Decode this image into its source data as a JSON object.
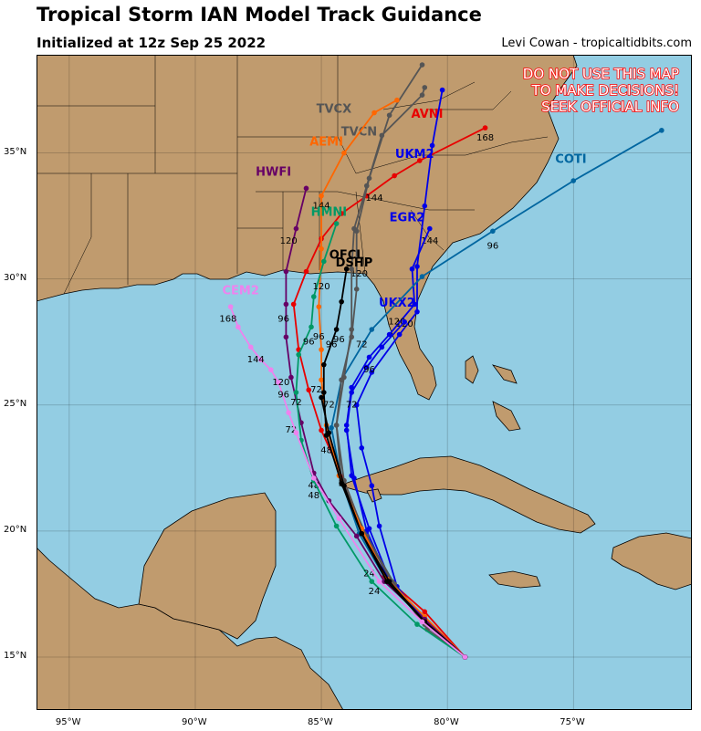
{
  "header": {
    "title": "Tropical Storm IAN Model Track Guidance",
    "subtitle": "Initialized at 12z Sep 25 2022",
    "credit": "Levi Cowan - tropicaltidbits.com"
  },
  "warning": [
    "DO NOT USE THIS MAP",
    "TO MAKE DECISIONS!",
    "SEEK OFFICIAL INFO"
  ],
  "colors": {
    "ocean": "#93cde3",
    "land": "#c09b6e",
    "border": "#000000",
    "warning_text": "#ff0000"
  },
  "axes": {
    "lon_range": [
      -96.3,
      -70.3
    ],
    "lat_range": [
      12.9,
      38.9
    ],
    "lon_ticks": [
      {
        "v": -95,
        "t": "95°W"
      },
      {
        "v": -90,
        "t": "90°W"
      },
      {
        "v": -85,
        "t": "85°W"
      },
      {
        "v": -80,
        "t": "80°W"
      },
      {
        "v": -75,
        "t": "75°W"
      }
    ],
    "lat_ticks": [
      {
        "v": 15,
        "t": "15°N"
      },
      {
        "v": 20,
        "t": "20°N"
      },
      {
        "v": 25,
        "t": "25°N"
      },
      {
        "v": 30,
        "t": "30°N"
      },
      {
        "v": 35,
        "t": "35°N"
      }
    ]
  },
  "tracks": [
    {
      "name": "AVNI",
      "color": "#e80000",
      "label_at": [
        -80.8,
        36.4
      ],
      "points": [
        [
          -79.3,
          15.0
        ],
        [
          -80.9,
          16.8
        ],
        [
          -82.5,
          18.2
        ],
        [
          -83.3,
          19.9
        ],
        [
          -84.1,
          22.0
        ],
        [
          -85.0,
          24.0
        ],
        [
          -85.5,
          25.6
        ],
        [
          -85.9,
          27.2
        ],
        [
          -86.1,
          29.0
        ],
        [
          -85.6,
          30.3
        ],
        [
          -85.0,
          31.6
        ],
        [
          -84.2,
          32.6
        ],
        [
          -83.2,
          33.3
        ],
        [
          -82.1,
          34.1
        ],
        [
          -81.1,
          34.7
        ],
        [
          -78.5,
          36.0
        ]
      ],
      "hours": [
        {
          "t": "168",
          "at": [
            -78.5,
            35.5
          ]
        }
      ]
    },
    {
      "name": "UKM2",
      "color": "#0000e8",
      "label_at": [
        -81.3,
        34.8
      ],
      "points": [
        [
          -79.3,
          15.0
        ],
        [
          -80.8,
          16.3
        ],
        [
          -82.0,
          17.8
        ],
        [
          -82.7,
          20.2
        ],
        [
          -83.0,
          21.8
        ],
        [
          -83.4,
          23.3
        ],
        [
          -83.6,
          25.0
        ],
        [
          -83.0,
          26.3
        ],
        [
          -81.9,
          27.8
        ],
        [
          -81.2,
          28.7
        ],
        [
          -81.2,
          30.5
        ],
        [
          -80.9,
          32.9
        ],
        [
          -80.6,
          35.3
        ],
        [
          -80.2,
          37.5
        ]
      ],
      "hours": [
        {
          "t": "144",
          "at": [
            -80.7,
            31.4
          ]
        },
        {
          "t": "120",
          "at": [
            -81.7,
            28.1
          ]
        }
      ]
    },
    {
      "name": "EGR2",
      "color": "#0000e8",
      "label_at": [
        -81.6,
        32.3
      ],
      "points": [
        [
          -79.3,
          15.0
        ],
        [
          -81.0,
          16.6
        ],
        [
          -82.3,
          18.1
        ],
        [
          -83.1,
          20.1
        ],
        [
          -83.8,
          22.2
        ],
        [
          -84.0,
          24.2
        ],
        [
          -83.8,
          25.7
        ],
        [
          -83.1,
          26.9
        ],
        [
          -82.3,
          27.8
        ],
        [
          -81.3,
          29.0
        ],
        [
          -81.4,
          30.4
        ],
        [
          -80.7,
          32.0
        ]
      ],
      "hours": [
        {
          "t": "120",
          "at": [
            -82.0,
            28.2
          ]
        }
      ]
    },
    {
      "name": "UKX2",
      "color": "#0000e8",
      "label_at": [
        -82.0,
        28.9
      ],
      "points": [
        [
          -79.3,
          15.0
        ],
        [
          -80.9,
          16.5
        ],
        [
          -82.3,
          18.0
        ],
        [
          -83.2,
          20.0
        ],
        [
          -83.7,
          22.1
        ],
        [
          -84.0,
          24.0
        ],
        [
          -83.8,
          25.5
        ],
        [
          -83.2,
          26.5
        ],
        [
          -82.6,
          27.3
        ],
        [
          -81.7,
          28.3
        ]
      ],
      "hours": [
        {
          "t": "72",
          "at": [
            -83.8,
            24.9
          ]
        },
        {
          "t": "96",
          "at": [
            -83.1,
            26.3
          ]
        }
      ]
    },
    {
      "name": "COTI",
      "color": "#0066a0",
      "label_at": [
        -75.1,
        34.6
      ],
      "points": [
        [
          -79.3,
          15.0
        ],
        [
          -80.9,
          16.4
        ],
        [
          -82.4,
          18.0
        ],
        [
          -83.5,
          19.9
        ],
        [
          -84.2,
          22.0
        ],
        [
          -84.6,
          24.1
        ],
        [
          -84.2,
          26.0
        ],
        [
          -83.0,
          28.0
        ],
        [
          -81.0,
          30.1
        ],
        [
          -78.2,
          31.9
        ],
        [
          -75.0,
          33.9
        ],
        [
          -71.5,
          35.9
        ]
      ],
      "hours": [
        {
          "t": "96",
          "at": [
            -78.2,
            31.2
          ]
        },
        {
          "t": "72",
          "at": [
            -83.4,
            27.3
          ]
        }
      ]
    },
    {
      "name": "TVCX",
      "color": "#555555",
      "label_at": [
        -84.5,
        36.6
      ],
      "points": [
        [
          -79.3,
          15.0
        ],
        [
          -80.8,
          16.1
        ],
        [
          -82.1,
          17.9
        ],
        [
          -83.2,
          19.8
        ],
        [
          -84.2,
          22.0
        ],
        [
          -84.4,
          24.2
        ],
        [
          -84.2,
          26.0
        ],
        [
          -83.8,
          27.7
        ],
        [
          -83.6,
          29.6
        ],
        [
          -83.6,
          31.9
        ],
        [
          -83.1,
          34.0
        ],
        [
          -82.3,
          36.5
        ],
        [
          -81.0,
          38.5
        ]
      ],
      "hours": [
        {
          "t": "144",
          "at": [
            -82.9,
            33.1
          ]
        },
        {
          "t": "120",
          "at": [
            -83.5,
            30.1
          ]
        }
      ]
    },
    {
      "name": "TVCN",
      "color": "#555555",
      "label_at": [
        -83.5,
        35.7
      ],
      "points": [
        [
          -79.3,
          15.0
        ],
        [
          -80.9,
          16.3
        ],
        [
          -82.2,
          18.0
        ],
        [
          -83.3,
          19.9
        ],
        [
          -84.1,
          22.0
        ],
        [
          -84.4,
          24.2
        ],
        [
          -84.1,
          26.1
        ],
        [
          -83.8,
          28.0
        ],
        [
          -83.8,
          30.4
        ],
        [
          -83.7,
          32.0
        ],
        [
          -83.2,
          33.7
        ],
        [
          -82.6,
          35.7
        ],
        [
          -81.0,
          37.3
        ],
        [
          -80.9,
          37.6
        ]
      ],
      "hours": [
        {
          "t": "96",
          "at": [
            -84.3,
            27.5
          ]
        }
      ]
    },
    {
      "name": "AEMI",
      "color": "#ff6600",
      "label_at": [
        -84.8,
        35.3
      ],
      "points": [
        [
          -79.3,
          15.0
        ],
        [
          -80.9,
          16.6
        ],
        [
          -82.4,
          18.1
        ],
        [
          -83.4,
          20.1
        ],
        [
          -84.3,
          22.2
        ],
        [
          -84.8,
          24.2
        ],
        [
          -85.0,
          26.0
        ],
        [
          -85.0,
          27.2
        ],
        [
          -85.1,
          28.9
        ],
        [
          -85.0,
          31.2
        ],
        [
          -85.0,
          33.3
        ],
        [
          -84.1,
          35.0
        ],
        [
          -82.9,
          36.6
        ],
        [
          -82.0,
          37.1
        ]
      ],
      "hours": [
        {
          "t": "144",
          "at": [
            -85.0,
            32.8
          ]
        },
        {
          "t": "96",
          "at": [
            -85.1,
            27.6
          ]
        },
        {
          "t": "72",
          "at": [
            -85.2,
            25.5
          ]
        }
      ]
    },
    {
      "name": "HWFI",
      "color": "#660066",
      "label_at": [
        -86.9,
        34.1
      ],
      "points": [
        [
          -79.3,
          15.0
        ],
        [
          -80.9,
          16.5
        ],
        [
          -82.5,
          18.0
        ],
        [
          -83.6,
          19.8
        ],
        [
          -84.7,
          21.2
        ],
        [
          -85.3,
          22.3
        ],
        [
          -85.8,
          24.3
        ],
        [
          -86.2,
          26.1
        ],
        [
          -86.4,
          27.7
        ],
        [
          -86.4,
          29.0
        ],
        [
          -86.4,
          30.3
        ],
        [
          -86.0,
          32.0
        ],
        [
          -85.6,
          33.6
        ]
      ],
      "hours": [
        {
          "t": "120",
          "at": [
            -86.3,
            31.4
          ]
        },
        {
          "t": "96",
          "at": [
            -86.5,
            28.3
          ]
        },
        {
          "t": "72",
          "at": [
            -86.2,
            23.9
          ]
        },
        {
          "t": "48",
          "at": [
            -85.3,
            21.7
          ]
        }
      ]
    },
    {
      "name": "HMNI",
      "color": "#009966",
      "label_at": [
        -84.7,
        32.5
      ],
      "points": [
        [
          -79.3,
          15.0
        ],
        [
          -81.2,
          16.3
        ],
        [
          -83.0,
          18.0
        ],
        [
          -84.4,
          20.2
        ],
        [
          -85.3,
          22.0
        ],
        [
          -85.8,
          23.6
        ],
        [
          -86.0,
          25.5
        ],
        [
          -85.9,
          27.0
        ],
        [
          -85.4,
          28.1
        ],
        [
          -85.3,
          29.3
        ],
        [
          -84.9,
          30.7
        ],
        [
          -84.4,
          32.2
        ]
      ],
      "hours": [
        {
          "t": "120",
          "at": [
            -85.0,
            29.6
          ]
        },
        {
          "t": "96",
          "at": [
            -85.5,
            27.4
          ]
        },
        {
          "t": "72",
          "at": [
            -86.0,
            25.0
          ]
        },
        {
          "t": "48",
          "at": [
            -85.3,
            21.3
          ]
        },
        {
          "t": "24",
          "at": [
            -82.9,
            17.5
          ]
        }
      ]
    },
    {
      "name": "OFCL",
      "color": "#000000",
      "label_at": [
        -84.0,
        30.8
      ],
      "points": [
        [
          -79.3,
          15.0
        ],
        [
          -80.9,
          16.4
        ],
        [
          -82.3,
          18.0
        ],
        [
          -83.4,
          19.9
        ],
        [
          -84.2,
          21.9
        ],
        [
          -84.8,
          23.8
        ],
        [
          -84.9,
          25.5
        ],
        [
          -84.9,
          26.6
        ],
        [
          -84.4,
          28.0
        ],
        [
          -84.2,
          29.1
        ],
        [
          -84.0,
          30.4
        ]
      ],
      "hours": [
        {
          "t": "72",
          "at": [
            -84.7,
            24.9
          ]
        },
        {
          "t": "48",
          "at": [
            -84.8,
            23.1
          ]
        },
        {
          "t": "96",
          "at": [
            -84.6,
            27.3
          ]
        }
      ]
    },
    {
      "name": "DSHP",
      "color": "#000000",
      "label_at": [
        -83.7,
        30.5
      ],
      "points": [
        [
          -79.3,
          15.0
        ],
        [
          -80.9,
          16.4
        ],
        [
          -82.4,
          18.0
        ],
        [
          -83.4,
          19.9
        ],
        [
          -84.1,
          21.8
        ],
        [
          -84.7,
          23.9
        ],
        [
          -85.0,
          25.3
        ]
      ],
      "hours": [
        {
          "t": "24",
          "at": [
            -83.1,
            18.2
          ]
        }
      ]
    },
    {
      "name": "CEM2",
      "color": "#ee82ee",
      "label_at": [
        -88.2,
        29.4
      ],
      "points": [
        [
          -79.3,
          15.0
        ],
        [
          -81.0,
          16.4
        ],
        [
          -82.7,
          18.0
        ],
        [
          -84.3,
          20.5
        ],
        [
          -85.3,
          22.1
        ],
        [
          -86.0,
          23.9
        ],
        [
          -86.3,
          24.7
        ],
        [
          -86.7,
          25.9
        ],
        [
          -87.0,
          26.4
        ],
        [
          -87.4,
          26.8
        ],
        [
          -87.8,
          27.3
        ],
        [
          -88.3,
          28.1
        ],
        [
          -88.6,
          28.9
        ]
      ],
      "hours": [
        {
          "t": "168",
          "at": [
            -88.7,
            28.3
          ]
        },
        {
          "t": "144",
          "at": [
            -87.6,
            26.7
          ]
        },
        {
          "t": "120",
          "at": [
            -86.6,
            25.8
          ]
        },
        {
          "t": "96",
          "at": [
            -86.5,
            25.3
          ]
        }
      ]
    }
  ]
}
